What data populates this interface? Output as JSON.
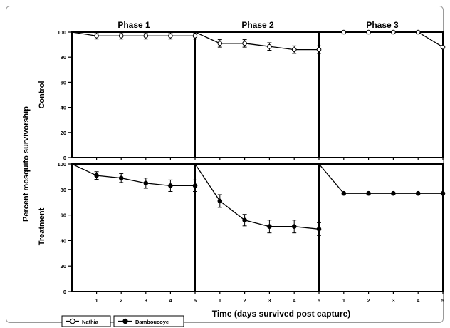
{
  "chart_data": {
    "type": "line",
    "ylabel": "Percent mosquito survivorship",
    "xlabel": "Time (days survived post capture)",
    "phases": [
      "Phase 1",
      "Phase 2",
      "Phase 3"
    ],
    "rows": [
      "Control",
      "Treatment"
    ],
    "ylim": [
      0,
      100
    ],
    "yticks": [
      0,
      20,
      40,
      60,
      80,
      100
    ],
    "xlim": [
      0,
      5
    ],
    "xticks": [
      1,
      2,
      3,
      4,
      5
    ],
    "legend": [
      {
        "name": "Nathia",
        "marker": "open-circle"
      },
      {
        "name": "Damboucoye",
        "marker": "filled-circle"
      }
    ],
    "legend_position": "bottom-left",
    "grid": false,
    "panels": [
      {
        "row": "Control",
        "phase": "Phase 1",
        "series": "Nathia",
        "marker": "open-circle",
        "x": [
          0,
          1,
          2,
          3,
          4,
          5
        ],
        "y": [
          100,
          97,
          97,
          97,
          97,
          97
        ],
        "err": [
          0,
          2.5,
          2.5,
          2.5,
          2.5,
          2.5
        ]
      },
      {
        "row": "Control",
        "phase": "Phase 2",
        "series": "Nathia",
        "marker": "open-circle",
        "x": [
          0,
          1,
          2,
          3,
          4,
          5
        ],
        "y": [
          100,
          91,
          91,
          88.5,
          86,
          86
        ],
        "err": [
          0,
          3,
          3,
          3,
          3,
          3
        ]
      },
      {
        "row": "Control",
        "phase": "Phase 3",
        "series": "Nathia",
        "marker": "open-circle",
        "x": [
          0,
          1,
          2,
          3,
          4,
          5
        ],
        "y": [
          100,
          100,
          100,
          100,
          100,
          88
        ],
        "err": [
          0,
          0,
          0,
          0,
          0,
          0
        ]
      },
      {
        "row": "Treatment",
        "phase": "Phase 1",
        "series": "Damboucoye",
        "marker": "filled-circle",
        "x": [
          0,
          1,
          2,
          3,
          4,
          5
        ],
        "y": [
          100,
          91,
          89,
          85,
          83,
          83
        ],
        "err": [
          0,
          3,
          3.5,
          4,
          4.5,
          4.5
        ]
      },
      {
        "row": "Treatment",
        "phase": "Phase 2",
        "series": "Damboucoye",
        "marker": "filled-circle",
        "x": [
          0,
          1,
          2,
          3,
          4,
          5
        ],
        "y": [
          100,
          71,
          56,
          51,
          51,
          49
        ],
        "err": [
          0,
          5,
          4.5,
          5,
          5,
          5
        ]
      },
      {
        "row": "Treatment",
        "phase": "Phase 3",
        "series": "Damboucoye",
        "marker": "filled-circle",
        "x": [
          0,
          1,
          2,
          3,
          4,
          5
        ],
        "y": [
          100,
          77,
          77,
          77,
          77,
          77
        ],
        "err": [
          0,
          0,
          0,
          0,
          0,
          0
        ]
      }
    ]
  }
}
